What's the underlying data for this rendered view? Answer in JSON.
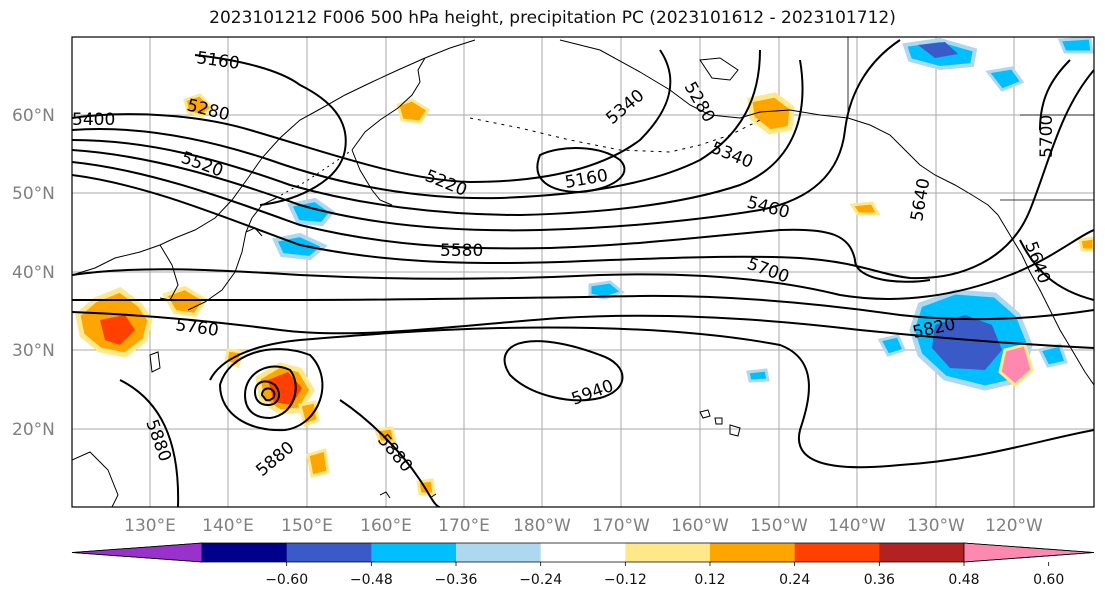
{
  "title": "2023101212 F006 500 hPa height, precipitation PC (2023101612 - 2023101712)",
  "lat_labels": [
    "60°N",
    "50°N",
    "40°N",
    "30°N",
    "20°N"
  ],
  "lon_labels": [
    "130°E",
    "140°E",
    "150°E",
    "160°E",
    "170°E",
    "180°W",
    "170°W",
    "160°W",
    "150°W",
    "140°W",
    "130°W",
    "120°W"
  ],
  "contour_labels": [
    "5160",
    "5280",
    "5400",
    "5520",
    "5220",
    "5340",
    "5280",
    "5160",
    "5340",
    "5460",
    "5580",
    "5640",
    "5700",
    "5760",
    "5820",
    "5880",
    "5880",
    "5880",
    "5940",
    "5640",
    "5700"
  ],
  "colorbar": {
    "ticks": [
      "−0.60",
      "−0.48",
      "−0.36",
      "−0.24",
      "−0.12",
      "0.12",
      "0.24",
      "0.36",
      "0.48",
      "0.60"
    ],
    "colors": [
      "#9932CC",
      "#00008B",
      "#3A5BC7",
      "#00BFFF",
      "#ADD8F0",
      "#FFFFFF",
      "#FFE88A",
      "#FFA500",
      "#FF4000",
      "#B22222",
      "#FF88B0"
    ]
  }
}
